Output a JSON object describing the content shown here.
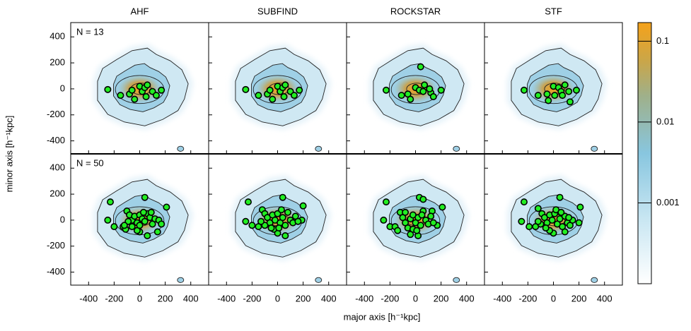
{
  "chart_data": {
    "type": "scatter-grid",
    "xlabel": "major axis [h⁻¹kpc]",
    "ylabel": "minor axis [h⁻¹kpc]",
    "xlim": [
      -540,
      540
    ],
    "ylim": [
      -500,
      510
    ],
    "xticks": [
      -400,
      -200,
      0,
      200,
      400
    ],
    "yticks": [
      -400,
      -200,
      0,
      200,
      400
    ],
    "point_color": "#22ee22",
    "columns": [
      "AHF",
      "SUBFIND",
      "ROCKSTAR",
      "STF"
    ],
    "rows": [
      {
        "label": "N = 13",
        "panels": [
          {
            "x": [
              -250,
              -150,
              -80,
              -60,
              -40,
              0,
              20,
              40,
              60,
              50,
              100,
              130,
              170
            ],
            "y": [
              -5,
              -50,
              -40,
              -10,
              -80,
              20,
              -20,
              10,
              30,
              -60,
              -20,
              -50,
              -10
            ]
          },
          {
            "x": [
              -250,
              -150,
              -80,
              -60,
              -40,
              0,
              20,
              40,
              60,
              50,
              100,
              130,
              170
            ],
            "y": [
              -5,
              -50,
              -40,
              -10,
              -80,
              20,
              -20,
              10,
              30,
              -60,
              -20,
              -50,
              -10
            ]
          },
          {
            "x": [
              -230,
              -110,
              -60,
              -40,
              0,
              30,
              40,
              60,
              70,
              120,
              140,
              200,
              110
            ],
            "y": [
              -10,
              -50,
              -40,
              -80,
              10,
              -10,
              170,
              -20,
              30,
              -30,
              -60,
              -10,
              0
            ]
          },
          {
            "x": [
              -230,
              -120,
              -50,
              -40,
              0,
              10,
              40,
              60,
              90,
              120,
              130,
              180,
              70
            ],
            "y": [
              -10,
              -50,
              -40,
              -90,
              20,
              -50,
              10,
              -20,
              30,
              -20,
              -100,
              -10,
              -50
            ]
          }
        ]
      },
      {
        "label": "N = 50",
        "panels": [
          {
            "x": [
              -230,
              -250,
              -200,
              40,
              210,
              -130,
              -110,
              140,
              60,
              0,
              -20,
              -100,
              -80,
              -60,
              -40,
              -20,
              0,
              20,
              40,
              60,
              80,
              100,
              120,
              150,
              170,
              -60,
              -90,
              0,
              30,
              -120,
              90
            ],
            "y": [
              140,
              0,
              -50,
              175,
              100,
              -50,
              -70,
              -90,
              -120,
              -90,
              -80,
              70,
              40,
              0,
              30,
              -20,
              40,
              10,
              -10,
              50,
              20,
              -30,
              10,
              0,
              -30,
              -50,
              -10,
              -40,
              60,
              -40,
              60
            ]
          },
          {
            "x": [
              -230,
              -250,
              -200,
              40,
              200,
              -150,
              60,
              0,
              -30,
              190,
              -120,
              -100,
              -80,
              -60,
              -40,
              -20,
              0,
              20,
              40,
              60,
              80,
              100,
              120,
              140,
              -100,
              -50,
              10,
              30,
              160,
              -130
            ],
            "y": [
              140,
              -10,
              -40,
              175,
              110,
              -50,
              -120,
              -100,
              -70,
              0,
              80,
              50,
              20,
              -20,
              40,
              0,
              50,
              -20,
              20,
              -40,
              60,
              0,
              -20,
              30,
              -40,
              -60,
              -60,
              80,
              -10,
              -10
            ]
          },
          {
            "x": [
              -230,
              -250,
              -200,
              30,
              60,
              210,
              -160,
              20,
              -40,
              170,
              130,
              -120,
              -100,
              -80,
              -60,
              -40,
              -20,
              0,
              20,
              40,
              60,
              80,
              100,
              -140,
              -20,
              50,
              120,
              -80,
              140,
              10
            ],
            "y": [
              140,
              0,
              -50,
              175,
              160,
              100,
              -50,
              -120,
              -110,
              -40,
              70,
              60,
              20,
              -20,
              -60,
              10,
              40,
              -20,
              20,
              -40,
              70,
              0,
              -30,
              -80,
              -70,
              40,
              30,
              60,
              -20,
              -80
            ]
          },
          {
            "x": [
              -230,
              -250,
              -190,
              50,
              210,
              -140,
              0,
              -30,
              200,
              90,
              -120,
              -90,
              -70,
              -50,
              -30,
              -10,
              10,
              30,
              50,
              70,
              90,
              110,
              130,
              150,
              -60,
              -100,
              20,
              60,
              120,
              -120
            ],
            "y": [
              140,
              -10,
              -50,
              175,
              100,
              -50,
              -100,
              -80,
              -20,
              -90,
              90,
              50,
              20,
              -20,
              40,
              0,
              50,
              -30,
              10,
              -50,
              30,
              -20,
              -40,
              0,
              -60,
              -30,
              80,
              60,
              20,
              -10
            ]
          }
        ]
      }
    ],
    "colorbar": {
      "log": true,
      "lim": [
        0.0001,
        0.17
      ],
      "ticks": [
        0.001,
        0.01,
        0.1
      ]
    }
  }
}
